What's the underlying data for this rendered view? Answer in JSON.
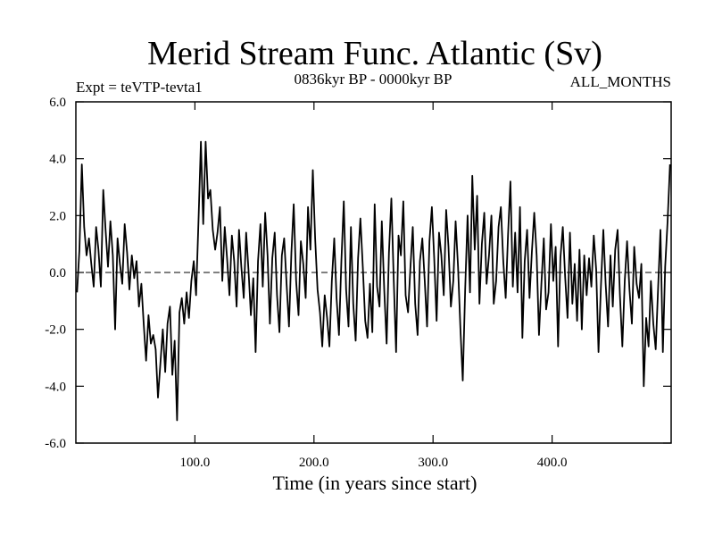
{
  "chart_data": {
    "type": "line",
    "title": "Merid Stream Func. Atlantic (Sv)",
    "subtitle_left": "Expt = teVTP-tevta1",
    "subtitle_center": "0836kyr BP - 0000kyr BP",
    "subtitle_right": "ALL_MONTHS",
    "xlabel": "Time (in years since start)",
    "ylabel": "",
    "xlim": [
      0,
      500
    ],
    "ylim": [
      -6,
      6
    ],
    "x_ticks": [
      {
        "value": 100,
        "label": "100.0"
      },
      {
        "value": 200,
        "label": "200.0"
      },
      {
        "value": 300,
        "label": "300.0"
      },
      {
        "value": 400,
        "label": "400.0"
      }
    ],
    "y_ticks": [
      {
        "value": 6,
        "label": "6.0"
      },
      {
        "value": 4,
        "label": "4.0"
      },
      {
        "value": 2,
        "label": "2.0"
      },
      {
        "value": 0,
        "label": "0.0"
      },
      {
        "value": -2,
        "label": "-2.0"
      },
      {
        "value": -4,
        "label": "-4.0"
      },
      {
        "value": -6,
        "label": "-6.0"
      }
    ],
    "zero_line": true,
    "series": [
      {
        "name": "Merid Stream Func. Atlantic",
        "color": "#000000",
        "x": [
          1,
          3,
          5,
          7,
          9,
          11,
          13,
          15,
          17,
          19,
          21,
          23,
          25,
          27,
          29,
          31,
          33,
          35,
          37,
          39,
          41,
          43,
          45,
          47,
          49,
          51,
          53,
          55,
          57,
          59,
          61,
          63,
          65,
          67,
          69,
          71,
          73,
          75,
          77,
          79,
          81,
          83,
          85,
          87,
          89,
          91,
          93,
          95,
          97,
          99,
          101,
          103,
          105,
          107,
          109,
          111,
          113,
          115,
          117,
          119,
          121,
          123,
          125,
          127,
          129,
          131,
          133,
          135,
          137,
          139,
          141,
          143,
          145,
          147,
          149,
          151,
          153,
          155,
          157,
          159,
          161,
          163,
          165,
          167,
          169,
          171,
          173,
          175,
          177,
          179,
          181,
          183,
          185,
          187,
          189,
          191,
          193,
          195,
          197,
          199,
          201,
          203,
          205,
          207,
          209,
          211,
          213,
          215,
          217,
          219,
          221,
          223,
          225,
          227,
          229,
          231,
          233,
          235,
          237,
          239,
          241,
          243,
          245,
          247,
          249,
          251,
          253,
          255,
          257,
          259,
          261,
          263,
          265,
          267,
          269,
          271,
          273,
          275,
          277,
          279,
          281,
          283,
          285,
          287,
          289,
          291,
          293,
          295,
          297,
          299,
          301,
          303,
          305,
          307,
          309,
          311,
          313,
          315,
          317,
          319,
          321,
          323,
          325,
          327,
          329,
          331,
          333,
          335,
          337,
          339,
          341,
          343,
          345,
          347,
          349,
          351,
          353,
          355,
          357,
          359,
          361,
          363,
          365,
          367,
          369,
          371,
          373,
          375,
          377,
          379,
          381,
          383,
          385,
          387,
          389,
          391,
          393,
          395,
          397,
          399,
          401,
          403,
          405,
          407,
          409,
          411,
          413,
          415,
          417,
          419,
          421,
          423,
          425,
          427,
          429,
          431,
          433,
          435,
          437,
          439,
          441,
          443,
          445,
          447,
          449,
          451,
          453,
          455,
          457,
          459,
          461,
          463,
          465,
          467,
          469,
          471,
          473,
          475,
          477,
          479,
          481,
          483,
          485,
          487,
          489,
          491,
          493,
          495,
          497,
          499
        ],
        "values": [
          -0.7,
          0.8,
          3.8,
          1.6,
          0.6,
          1.2,
          0.3,
          -0.5,
          1.6,
          0.8,
          -0.5,
          2.9,
          1.5,
          0.2,
          1.8,
          0.6,
          -2.0,
          1.2,
          0.3,
          -0.4,
          1.7,
          0.7,
          -0.6,
          0.6,
          -0.2,
          0.4,
          -1.2,
          -0.4,
          -1.8,
          -3.1,
          -1.5,
          -2.5,
          -2.2,
          -2.7,
          -4.4,
          -3.2,
          -2.0,
          -3.5,
          -1.8,
          -1.2,
          -3.6,
          -2.4,
          -5.2,
          -1.4,
          -0.9,
          -1.8,
          -0.7,
          -1.6,
          -0.3,
          0.4,
          -0.8,
          1.8,
          4.6,
          1.7,
          4.6,
          2.6,
          2.9,
          1.5,
          0.8,
          1.4,
          2.3,
          -0.3,
          1.6,
          0.5,
          -0.8,
          1.3,
          0.4,
          -1.2,
          1.5,
          0.2,
          -0.9,
          1.4,
          0.1,
          -1.5,
          -0.2,
          -2.8,
          0.4,
          1.7,
          -0.5,
          2.1,
          0.6,
          -1.8,
          0.5,
          1.4,
          -0.8,
          -2.1,
          0.6,
          1.2,
          -0.4,
          -1.9,
          0.7,
          2.4,
          -0.3,
          -1.5,
          1.1,
          0.3,
          -0.9,
          2.3,
          0.8,
          3.6,
          1.2,
          -0.6,
          -1.4,
          -2.6,
          -0.8,
          -1.6,
          -2.6,
          -0.3,
          1.2,
          -0.9,
          -2.2,
          0.4,
          2.5,
          -0.6,
          -1.9,
          1.6,
          -1.1,
          -2.4,
          0.5,
          1.9,
          0.2,
          -1.7,
          -2.3,
          -0.4,
          -2.1,
          2.4,
          -0.5,
          -1.2,
          1.8,
          -0.6,
          -2.5,
          0.7,
          2.6,
          -0.3,
          -2.8,
          1.3,
          0.6,
          2.5,
          -0.8,
          -1.4,
          0.2,
          1.6,
          -1.1,
          -2.2,
          0.4,
          1.2,
          -0.3,
          -1.9,
          1.1,
          2.3,
          0.5,
          -1.7,
          1.4,
          0.6,
          -0.8,
          2.2,
          0.9,
          -1.2,
          -0.3,
          1.8,
          0.2,
          -2.0,
          -3.8,
          -0.6,
          2.0,
          -0.7,
          3.4,
          0.8,
          2.7,
          -1.1,
          1.0,
          2.1,
          -0.4,
          0.6,
          2.0,
          -1.1,
          -0.3,
          1.6,
          2.3,
          0.4,
          -0.9,
          1.3,
          3.2,
          -0.5,
          1.4,
          -0.7,
          2.3,
          -2.3,
          0.4,
          1.5,
          -0.9,
          0.7,
          2.1,
          0.6,
          -2.2,
          -0.4,
          1.2,
          -1.3,
          -0.7,
          1.7,
          -0.3,
          0.9,
          -2.6,
          0.5,
          1.6,
          -0.2,
          -1.6,
          1.4,
          -1.1,
          0.3,
          -1.7,
          0.8,
          -2.0,
          0.6,
          -0.8,
          0.5,
          -0.5,
          1.3,
          0.1,
          -2.8,
          -0.5,
          1.5,
          -0.4,
          -1.9,
          0.6,
          -1.2,
          0.8,
          1.5,
          -0.8,
          -2.6,
          -0.3,
          1.1,
          -0.6,
          -1.8,
          0.9,
          -0.4,
          -0.9,
          0.3,
          -4.0,
          -1.6,
          -2.6,
          -0.3,
          -1.8,
          -2.7,
          -0.6,
          1.5,
          -2.8,
          0.2,
          1.8,
          3.8
        ]
      }
    ]
  }
}
